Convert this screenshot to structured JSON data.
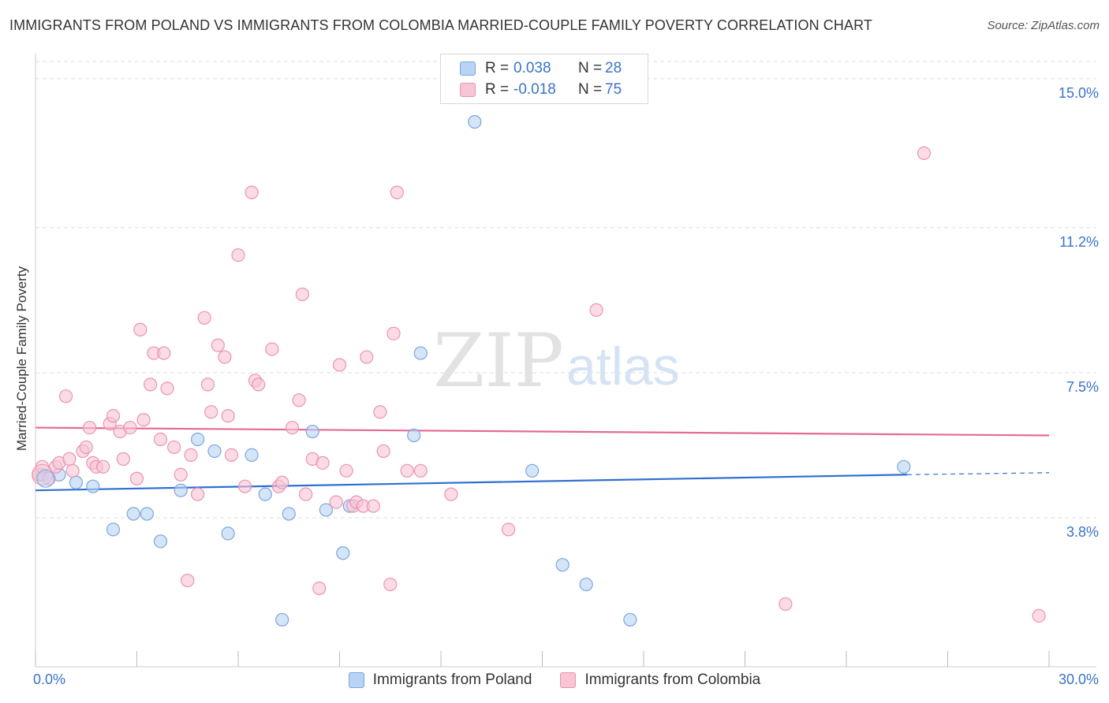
{
  "title": "IMMIGRANTS FROM POLAND VS IMMIGRANTS FROM COLOMBIA MARRIED-COUPLE FAMILY POVERTY CORRELATION CHART",
  "source": "Source: ZipAtlas.com",
  "watermark": {
    "zip": "ZIP",
    "atlas": "atlas"
  },
  "colors": {
    "poland_fill": "#b8d3f4",
    "poland_stroke": "#7aa6de",
    "poland_line": "#2e6fd1",
    "colombia_fill": "#f8c5d5",
    "colombia_stroke": "#ec92b0",
    "colombia_line": "#e46a93",
    "grid": "#dddddd",
    "axis_label": "#3a72c9"
  },
  "legend": {
    "rows": [
      {
        "series": "poland",
        "r_label": "R =",
        "r_value": "0.038",
        "n_label": "N =",
        "n_value": "28"
      },
      {
        "series": "colombia",
        "r_label": "R =",
        "r_value": "-0.018",
        "n_label": "N =",
        "n_value": "75"
      }
    ]
  },
  "chart_data": {
    "type": "scatter",
    "title": "IMMIGRANTS FROM POLAND VS IMMIGRANTS FROM COLOMBIA MARRIED-COUPLE FAMILY POVERTY CORRELATION CHART",
    "xlabel": "",
    "ylabel": "Married-Couple Family Poverty",
    "xlim": [
      0,
      30
    ],
    "ylim": [
      0,
      15.4
    ],
    "x_tick_labels": [
      "0.0%",
      "30.0%"
    ],
    "y_ticks": [
      3.8,
      7.5,
      11.2,
      15.0
    ],
    "y_tick_labels": [
      "3.8%",
      "7.5%",
      "11.2%",
      "15.0%"
    ],
    "grid": true,
    "series": [
      {
        "name": "Immigrants from Poland",
        "key": "poland",
        "trend": {
          "x0": 0,
          "y0": 4.5,
          "x1": 25.8,
          "y1": 4.9,
          "dash_to_x": 30,
          "dash_to_y": 4.95
        },
        "points": [
          [
            0.2,
            4.9
          ],
          [
            0.7,
            4.9
          ],
          [
            1.2,
            4.7
          ],
          [
            1.7,
            4.6
          ],
          [
            2.3,
            3.5
          ],
          [
            2.9,
            3.9
          ],
          [
            3.3,
            3.9
          ],
          [
            3.7,
            3.2
          ],
          [
            4.3,
            4.5
          ],
          [
            4.8,
            5.8
          ],
          [
            5.3,
            5.5
          ],
          [
            5.7,
            3.4
          ],
          [
            6.4,
            5.4
          ],
          [
            6.8,
            4.4
          ],
          [
            7.3,
            1.2
          ],
          [
            7.5,
            3.9
          ],
          [
            8.2,
            6.0
          ],
          [
            8.6,
            4.0
          ],
          [
            9.3,
            4.1
          ],
          [
            9.1,
            2.9
          ],
          [
            11.4,
            8.0
          ],
          [
            11.2,
            5.9
          ],
          [
            13.0,
            13.9
          ],
          [
            14.7,
            5.0
          ],
          [
            15.6,
            2.6
          ],
          [
            16.3,
            2.1
          ],
          [
            17.6,
            1.2
          ],
          [
            25.7,
            5.1
          ]
        ]
      },
      {
        "name": "Immigrants from Colombia",
        "key": "colombia",
        "trend": {
          "x0": 0,
          "y0": 6.1,
          "x1": 30,
          "y1": 5.9
        },
        "points": [
          [
            0.1,
            4.9
          ],
          [
            0.2,
            5.1
          ],
          [
            0.4,
            4.8
          ],
          [
            0.6,
            5.1
          ],
          [
            0.7,
            5.2
          ],
          [
            0.9,
            6.9
          ],
          [
            1.0,
            5.3
          ],
          [
            1.1,
            5.0
          ],
          [
            1.4,
            5.5
          ],
          [
            1.5,
            5.6
          ],
          [
            1.6,
            6.1
          ],
          [
            1.7,
            5.2
          ],
          [
            1.8,
            5.1
          ],
          [
            2.0,
            5.1
          ],
          [
            2.2,
            6.2
          ],
          [
            2.3,
            6.4
          ],
          [
            2.5,
            6.0
          ],
          [
            2.6,
            5.3
          ],
          [
            2.8,
            6.1
          ],
          [
            3.0,
            4.8
          ],
          [
            3.1,
            8.6
          ],
          [
            3.2,
            6.3
          ],
          [
            3.4,
            7.2
          ],
          [
            3.5,
            8.0
          ],
          [
            3.7,
            5.8
          ],
          [
            3.8,
            8.0
          ],
          [
            3.9,
            7.1
          ],
          [
            4.1,
            5.6
          ],
          [
            4.3,
            4.9
          ],
          [
            4.5,
            2.2
          ],
          [
            4.6,
            5.4
          ],
          [
            4.8,
            4.4
          ],
          [
            5.0,
            8.9
          ],
          [
            5.1,
            7.2
          ],
          [
            5.2,
            6.5
          ],
          [
            5.4,
            8.2
          ],
          [
            5.6,
            7.9
          ],
          [
            5.7,
            6.4
          ],
          [
            5.8,
            5.4
          ],
          [
            6.0,
            10.5
          ],
          [
            6.2,
            4.6
          ],
          [
            6.4,
            12.1
          ],
          [
            6.5,
            7.3
          ],
          [
            6.6,
            7.2
          ],
          [
            7.0,
            8.1
          ],
          [
            7.2,
            4.6
          ],
          [
            7.3,
            4.7
          ],
          [
            7.6,
            6.1
          ],
          [
            7.8,
            6.8
          ],
          [
            7.9,
            9.5
          ],
          [
            8.0,
            4.4
          ],
          [
            8.2,
            5.3
          ],
          [
            8.4,
            2.0
          ],
          [
            8.5,
            5.2
          ],
          [
            8.9,
            4.2
          ],
          [
            9.0,
            7.7
          ],
          [
            9.2,
            5.0
          ],
          [
            9.4,
            4.1
          ],
          [
            9.5,
            4.2
          ],
          [
            9.7,
            4.1
          ],
          [
            9.8,
            7.9
          ],
          [
            10.0,
            4.1
          ],
          [
            10.2,
            6.5
          ],
          [
            10.3,
            5.5
          ],
          [
            10.5,
            2.1
          ],
          [
            10.6,
            8.5
          ],
          [
            10.7,
            12.1
          ],
          [
            11.0,
            5.0
          ],
          [
            11.4,
            5.0
          ],
          [
            12.3,
            4.4
          ],
          [
            14.0,
            3.5
          ],
          [
            16.6,
            9.1
          ],
          [
            22.2,
            1.6
          ],
          [
            26.3,
            13.1
          ],
          [
            29.7,
            1.3
          ]
        ]
      }
    ]
  },
  "bottom_legend": [
    {
      "series": "poland",
      "label": "Immigrants from Poland"
    },
    {
      "series": "colombia",
      "label": "Immigrants from Colombia"
    }
  ]
}
